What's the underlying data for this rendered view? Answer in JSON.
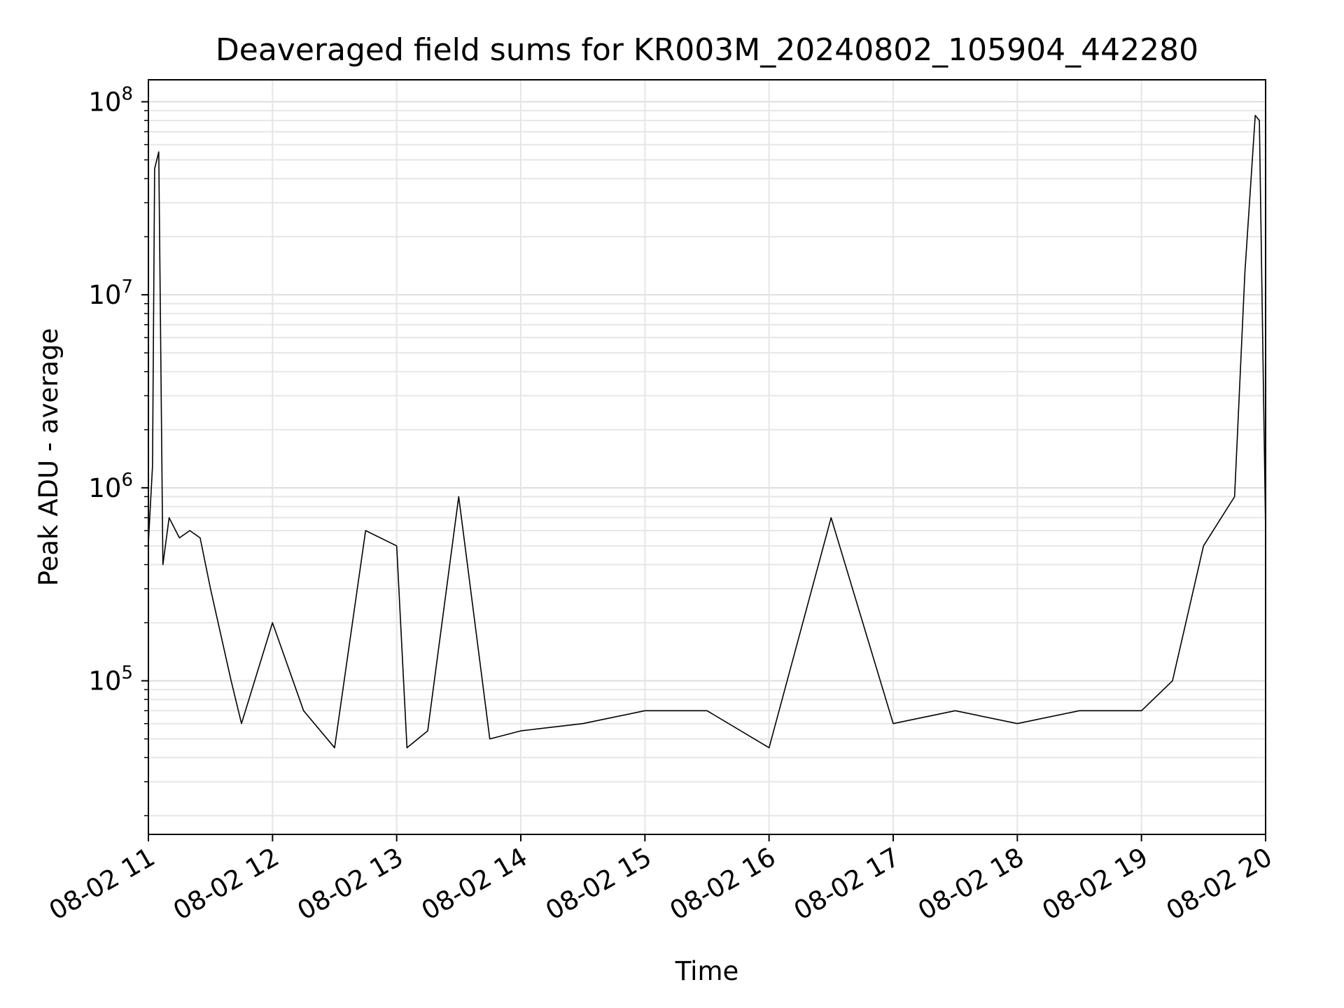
{
  "chart_data": {
    "type": "line",
    "title": "Deaveraged field sums for KR003M_20240802_105904_442280",
    "xlabel": "Time",
    "ylabel": "Peak ADU - average",
    "x_ticks": [
      "08-02 11",
      "08-02 12",
      "08-02 13",
      "08-02 14",
      "08-02 15",
      "08-02 16",
      "08-02 17",
      "08-02 18",
      "08-02 19",
      "08-02 20"
    ],
    "y_ticks": [
      {
        "base": "10",
        "exp": "5",
        "value": 100000
      },
      {
        "base": "10",
        "exp": "6",
        "value": 1000000
      },
      {
        "base": "10",
        "exp": "7",
        "value": 10000000
      },
      {
        "base": "10",
        "exp": "8",
        "value": 100000000
      }
    ],
    "x_range": [
      "2024-08-02 11:00",
      "2024-08-02 20:00"
    ],
    "y_scale": "log",
    "ylim": [
      16000,
      130000000
    ],
    "grid": true,
    "line_color": "#000000",
    "series": [
      {
        "values": [
          [
            "2024-08-02 11:00",
            520000
          ],
          [
            "2024-08-02 11:02",
            1300000
          ],
          [
            "2024-08-02 11:03",
            45000000
          ],
          [
            "2024-08-02 11:05",
            55000000
          ],
          [
            "2024-08-02 11:07",
            400000
          ],
          [
            "2024-08-02 11:10",
            700000
          ],
          [
            "2024-08-02 11:15",
            550000
          ],
          [
            "2024-08-02 11:20",
            600000
          ],
          [
            "2024-08-02 11:25",
            550000
          ],
          [
            "2024-08-02 11:30",
            300000
          ],
          [
            "2024-08-02 11:40",
            100000
          ],
          [
            "2024-08-02 11:45",
            60000
          ],
          [
            "2024-08-02 12:00",
            200000
          ],
          [
            "2024-08-02 12:15",
            70000
          ],
          [
            "2024-08-02 12:30",
            45000
          ],
          [
            "2024-08-02 12:45",
            600000
          ],
          [
            "2024-08-02 13:00",
            500000
          ],
          [
            "2024-08-02 13:05",
            45000
          ],
          [
            "2024-08-02 13:15",
            55000
          ],
          [
            "2024-08-02 13:30",
            900000
          ],
          [
            "2024-08-02 13:45",
            50000
          ],
          [
            "2024-08-02 14:00",
            55000
          ],
          [
            "2024-08-02 14:30",
            60000
          ],
          [
            "2024-08-02 15:00",
            70000
          ],
          [
            "2024-08-02 15:30",
            70000
          ],
          [
            "2024-08-02 16:00",
            45000
          ],
          [
            "2024-08-02 16:30",
            700000
          ],
          [
            "2024-08-02 17:00",
            60000
          ],
          [
            "2024-08-02 17:30",
            70000
          ],
          [
            "2024-08-02 18:00",
            60000
          ],
          [
            "2024-08-02 18:30",
            70000
          ],
          [
            "2024-08-02 19:00",
            70000
          ],
          [
            "2024-08-02 19:15",
            100000
          ],
          [
            "2024-08-02 19:30",
            500000
          ],
          [
            "2024-08-02 19:45",
            900000
          ],
          [
            "2024-08-02 19:50",
            13000000
          ],
          [
            "2024-08-02 19:55",
            85000000
          ],
          [
            "2024-08-02 19:57",
            80000000
          ],
          [
            "2024-08-02 20:00",
            600000
          ]
        ]
      }
    ]
  }
}
